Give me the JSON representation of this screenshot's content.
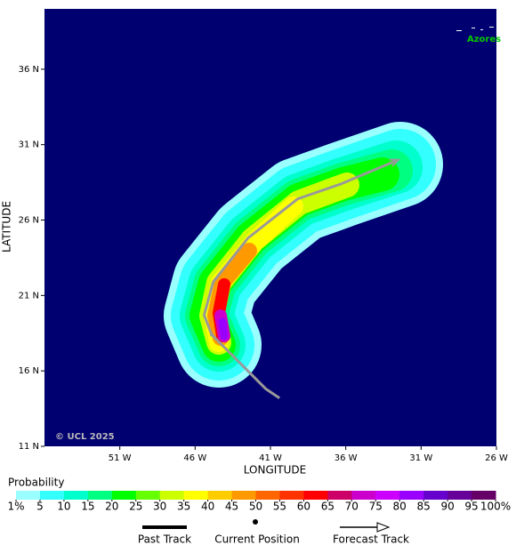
{
  "chart_data": {
    "type": "map",
    "xlabel": "LONGITUDE",
    "ylabel": "LATITUDE",
    "xlim": [
      -56,
      -26
    ],
    "ylim": [
      11,
      40
    ],
    "xticks": [
      {
        "value": -51,
        "label": "51 W"
      },
      {
        "value": -46,
        "label": "46 W"
      },
      {
        "value": -41,
        "label": "41 W"
      },
      {
        "value": -36,
        "label": "36 W"
      },
      {
        "value": -31,
        "label": "31 W"
      },
      {
        "value": -26,
        "label": "26 W"
      }
    ],
    "yticks": [
      {
        "value": 36,
        "label": "36 N"
      },
      {
        "value": 31,
        "label": "31 N"
      },
      {
        "value": 26,
        "label": "26 N"
      },
      {
        "value": 21,
        "label": "21 N"
      },
      {
        "value": 16,
        "label": "16 N"
      },
      {
        "value": 11,
        "label": "11 N"
      }
    ],
    "place_label": "Azores",
    "credit": "© UCL 2025",
    "past_track": {
      "name": "Past Track",
      "x": [
        -40.4,
        -41.3,
        -44.9
      ],
      "y": [
        14.2,
        14.8,
        18.4
      ],
      "color": "#999999"
    },
    "current_position": {
      "name": "Current Position",
      "x": -44.9,
      "y": 18.4
    },
    "forecast_track": {
      "name": "Forecast Track",
      "x": [
        -44.9,
        -45.4,
        -44.8,
        -42.5,
        -39.2,
        -36.3,
        -32.5
      ],
      "y": [
        18.4,
        19.7,
        21.9,
        24.8,
        27.4,
        28.4,
        30.0
      ],
      "color": "#999999"
    },
    "colorbar": {
      "title": "Probability",
      "ticks": [
        {
          "value": 1,
          "label": "1%"
        },
        5,
        10,
        15,
        20,
        25,
        30,
        35,
        40,
        45,
        50,
        55,
        60,
        65,
        70,
        75,
        80,
        85,
        90,
        95,
        {
          "value": 100,
          "label": "100%"
        }
      ],
      "colors": [
        "#99ffff",
        "#33ffff",
        "#00ffcc",
        "#00ff80",
        "#00ff00",
        "#66ff00",
        "#ccff00",
        "#ffff00",
        "#ffcc00",
        "#ff9900",
        "#ff6600",
        "#ff3300",
        "#ff0000",
        "#cc0066",
        "#cc00cc",
        "#cc00ff",
        "#9900ff",
        "#6600cc",
        "#660099",
        "#660066"
      ]
    }
  }
}
